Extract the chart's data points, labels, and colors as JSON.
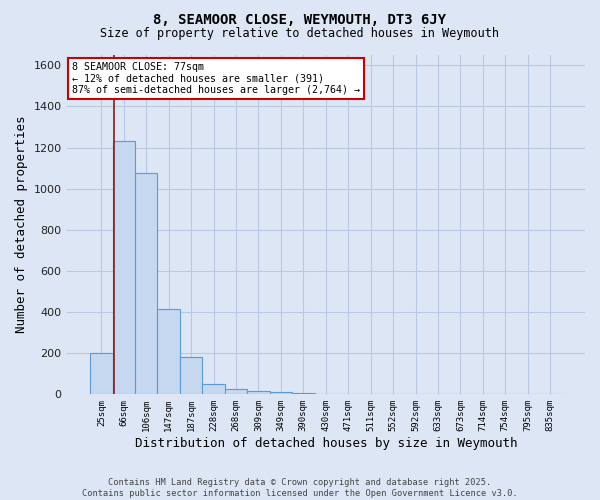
{
  "title1": "8, SEAMOOR CLOSE, WEYMOUTH, DT3 6JY",
  "title2": "Size of property relative to detached houses in Weymouth",
  "xlabel": "Distribution of detached houses by size in Weymouth",
  "ylabel": "Number of detached properties",
  "categories": [
    "25sqm",
    "66sqm",
    "106sqm",
    "147sqm",
    "187sqm",
    "228sqm",
    "268sqm",
    "309sqm",
    "349sqm",
    "390sqm",
    "430sqm",
    "471sqm",
    "511sqm",
    "552sqm",
    "592sqm",
    "633sqm",
    "673sqm",
    "714sqm",
    "754sqm",
    "795sqm",
    "835sqm"
  ],
  "values": [
    200,
    1230,
    1075,
    415,
    180,
    50,
    28,
    18,
    10,
    8,
    0,
    0,
    0,
    0,
    0,
    0,
    0,
    0,
    0,
    0,
    0
  ],
  "bar_color": "#c5d8f0",
  "bar_edge_color": "#5b9bd5",
  "background_color": "#dce6f5",
  "plot_bg_color": "#dce6f5",
  "grid_color": "#b8c8e0",
  "vline_color": "#8b1a1a",
  "vline_x_idx": 0.57,
  "ylim": [
    0,
    1650
  ],
  "yticks": [
    0,
    200,
    400,
    600,
    800,
    1000,
    1200,
    1400,
    1600
  ],
  "annotation_title": "8 SEAMOOR CLOSE: 77sqm",
  "annotation_line1": "← 12% of detached houses are smaller (391)",
  "annotation_line2": "87% of semi-detached houses are larger (2,764) →",
  "annotation_box_color": "#ffffff",
  "annotation_box_edge": "#cc0000",
  "footer1": "Contains HM Land Registry data © Crown copyright and database right 2025.",
  "footer2": "Contains public sector information licensed under the Open Government Licence v3.0."
}
